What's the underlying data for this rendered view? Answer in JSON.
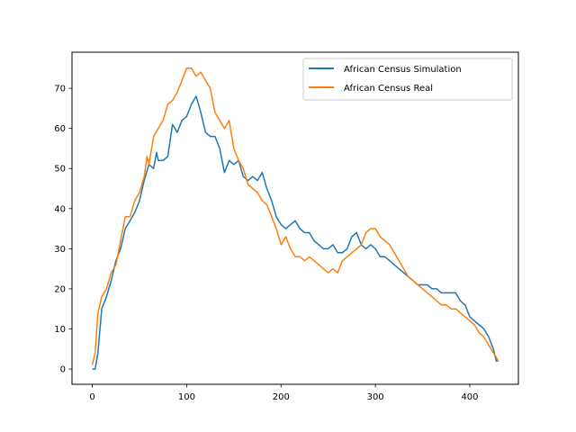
{
  "chart_data": {
    "type": "line",
    "title": "",
    "xlabel": "",
    "ylabel": "",
    "xlim": [
      -21.5,
      451.5
    ],
    "ylim": [
      -3.8,
      79
    ],
    "grid": false,
    "legend_position": "top-right",
    "x_ticks": [
      0,
      100,
      200,
      300,
      400
    ],
    "y_ticks": [
      0,
      10,
      20,
      30,
      40,
      50,
      60,
      70
    ],
    "x_tick_labels": [
      "0",
      "100",
      "200",
      "300",
      "400"
    ],
    "y_tick_labels": [
      "0",
      "10",
      "20",
      "30",
      "40",
      "50",
      "60",
      "70"
    ],
    "series": [
      {
        "name": "African Census Simulation",
        "color": "#1f77b4",
        "x": [
          0,
          3,
          6,
          10,
          15,
          20,
          25,
          30,
          35,
          40,
          45,
          50,
          55,
          60,
          65,
          68,
          70,
          75,
          80,
          85,
          90,
          95,
          100,
          105,
          110,
          115,
          120,
          125,
          130,
          135,
          140,
          145,
          150,
          155,
          160,
          165,
          170,
          175,
          180,
          185,
          190,
          195,
          200,
          205,
          210,
          215,
          220,
          225,
          230,
          235,
          240,
          245,
          250,
          255,
          260,
          265,
          270,
          275,
          280,
          285,
          290,
          295,
          300,
          305,
          310,
          315,
          320,
          325,
          330,
          335,
          340,
          345,
          350,
          355,
          360,
          365,
          370,
          375,
          380,
          385,
          390,
          395,
          400,
          405,
          410,
          415,
          420,
          425,
          428,
          430
        ],
        "y": [
          0,
          0,
          4,
          15,
          18,
          22,
          27,
          30,
          35,
          37,
          39,
          42,
          47,
          51,
          50,
          54,
          52,
          52,
          53,
          61,
          59,
          62,
          63,
          66,
          68,
          64,
          59,
          58,
          58,
          55,
          49,
          52,
          51,
          52,
          48,
          47,
          48,
          47,
          49,
          45,
          42,
          38,
          36,
          35,
          36,
          37,
          35,
          34,
          34,
          32,
          31,
          30,
          30,
          31,
          29,
          29,
          30,
          33,
          34,
          31,
          30,
          31,
          30,
          28,
          28,
          27,
          26,
          25,
          24,
          23,
          22,
          21,
          21,
          21,
          20,
          20,
          19,
          19,
          19,
          19,
          17,
          16,
          13,
          12,
          11,
          10,
          8,
          5,
          2,
          2
        ]
      },
      {
        "name": "African Census Real",
        "color": "#ff7f0e",
        "x": [
          0,
          3,
          6,
          10,
          15,
          20,
          25,
          30,
          35,
          40,
          45,
          50,
          55,
          58,
          60,
          65,
          70,
          75,
          80,
          85,
          90,
          95,
          100,
          105,
          110,
          115,
          120,
          125,
          130,
          135,
          140,
          145,
          150,
          155,
          160,
          165,
          170,
          175,
          180,
          185,
          190,
          195,
          200,
          205,
          210,
          215,
          220,
          225,
          230,
          235,
          240,
          245,
          250,
          255,
          260,
          265,
          270,
          275,
          280,
          285,
          290,
          295,
          300,
          305,
          310,
          315,
          320,
          325,
          330,
          335,
          340,
          345,
          350,
          355,
          360,
          365,
          370,
          375,
          380,
          385,
          390,
          395,
          400,
          405,
          410,
          415,
          420,
          425,
          428,
          430
        ],
        "y": [
          1,
          4,
          14,
          18,
          20,
          24,
          26,
          32,
          38,
          38,
          42,
          44,
          48,
          53,
          51,
          58,
          60,
          62,
          66,
          67,
          69,
          72,
          75,
          75,
          73,
          74,
          72,
          70,
          64,
          62,
          60,
          62,
          55,
          52,
          50,
          46,
          45,
          44,
          42,
          41,
          38,
          35,
          31,
          33,
          30,
          28,
          28,
          27,
          28,
          27,
          26,
          25,
          24,
          25,
          24,
          27,
          28,
          29,
          30,
          31,
          34,
          35,
          35,
          33,
          32,
          31,
          29,
          27,
          25,
          23,
          22,
          21,
          20,
          19,
          18,
          17,
          16,
          16,
          15,
          15,
          14,
          13,
          12,
          11,
          9,
          8,
          6,
          4,
          3,
          2
        ]
      }
    ]
  }
}
